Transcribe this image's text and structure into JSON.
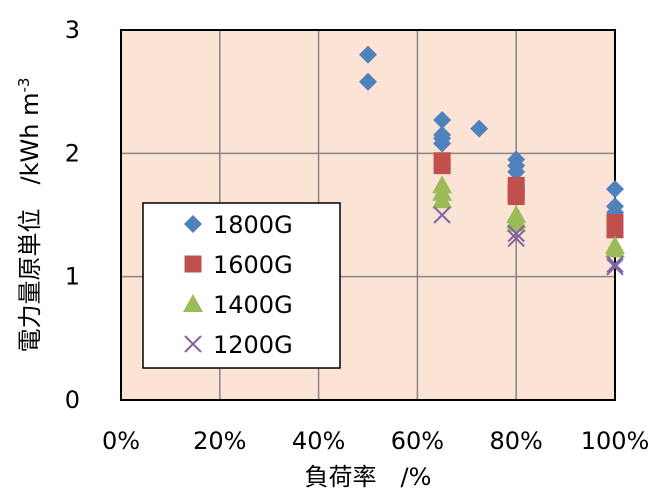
{
  "chart_data": {
    "type": "scatter",
    "xlabel": "負荷率　/%",
    "ylabel_main": "電力量原単位　/kWh m",
    "ylabel_sup": "-3",
    "xlim": [
      0,
      100
    ],
    "ylim": [
      0,
      3
    ],
    "x_ticks": [
      0,
      20,
      40,
      60,
      80,
      100
    ],
    "x_tick_labels": [
      "0%",
      "20%",
      "40%",
      "60%",
      "80%",
      "100%"
    ],
    "y_ticks": [
      0,
      1,
      2,
      3
    ],
    "y_tick_labels": [
      "0",
      "1",
      "2",
      "3"
    ],
    "grid": true,
    "plot_background": "#fbe4d5",
    "legend_position": "left-center",
    "series": [
      {
        "name": "1800G",
        "marker": "diamond",
        "color": "#4f81bd",
        "points": [
          [
            50,
            2.8
          ],
          [
            50,
            2.58
          ],
          [
            65,
            2.27
          ],
          [
            65,
            2.15
          ],
          [
            65,
            2.12
          ],
          [
            65,
            2.08
          ],
          [
            72.5,
            2.2
          ],
          [
            80,
            1.95
          ],
          [
            80,
            1.9
          ],
          [
            80,
            1.85
          ],
          [
            100,
            1.71
          ],
          [
            100,
            1.57
          ],
          [
            100,
            1.52
          ]
        ]
      },
      {
        "name": "1600G",
        "marker": "square",
        "color": "#c0504d",
        "points": [
          [
            65,
            1.94
          ],
          [
            65,
            1.9
          ],
          [
            80,
            1.74
          ],
          [
            80,
            1.68
          ],
          [
            80,
            1.65
          ],
          [
            100,
            1.44
          ],
          [
            100,
            1.4
          ],
          [
            100,
            1.38
          ]
        ]
      },
      {
        "name": "1400G",
        "marker": "triangle",
        "color": "#9bbb59",
        "points": [
          [
            65,
            1.74
          ],
          [
            65,
            1.68
          ],
          [
            65,
            1.62
          ],
          [
            80,
            1.5
          ],
          [
            80,
            1.46
          ],
          [
            80,
            1.43
          ],
          [
            100,
            1.25
          ],
          [
            100,
            1.22
          ]
        ]
      },
      {
        "name": "1200G",
        "marker": "x",
        "color": "#8064a2",
        "points": [
          [
            65,
            1.5
          ],
          [
            80,
            1.35
          ],
          [
            80,
            1.31
          ],
          [
            100,
            1.1
          ],
          [
            100,
            1.08
          ]
        ]
      }
    ]
  }
}
